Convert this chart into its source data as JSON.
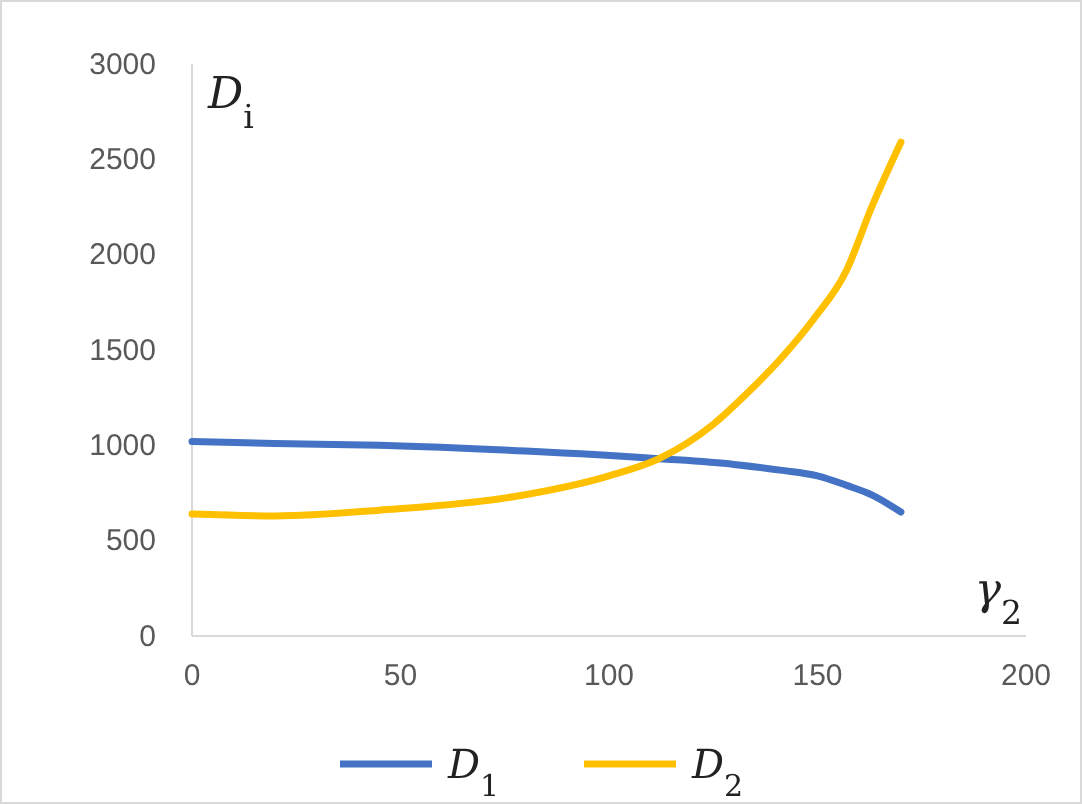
{
  "chart_data": {
    "type": "line",
    "xlabel": "γ$_{2}$",
    "ylabel": "D$_{i}$",
    "xlim": [
      0,
      200
    ],
    "ylim": [
      0,
      3000
    ],
    "xticks": [
      0,
      50,
      100,
      150,
      200
    ],
    "yticks": [
      0,
      500,
      1000,
      1500,
      2000,
      2500,
      3000
    ],
    "grid": false,
    "legend": "bottom",
    "marker": "none",
    "line_style": "solid",
    "series": [
      {
        "name": "D$_{1}$",
        "color": "#4472c4",
        "x": [
          0,
          20,
          45,
          80,
          112,
          130,
          141,
          150,
          157,
          163,
          170
        ],
        "values": [
          1020,
          1010,
          1000,
          970,
          930,
          900,
          870,
          840,
          790,
          740,
          650
        ]
      },
      {
        "name": "D$_{2}$",
        "color": "#ffc000",
        "x": [
          0,
          20,
          45,
          77,
          100,
          112,
          125,
          133,
          141,
          149,
          157,
          163,
          170
        ],
        "values": [
          640,
          630,
          660,
          730,
          840,
          930,
          1110,
          1270,
          1450,
          1660,
          1920,
          2250,
          2590
        ]
      }
    ]
  }
}
